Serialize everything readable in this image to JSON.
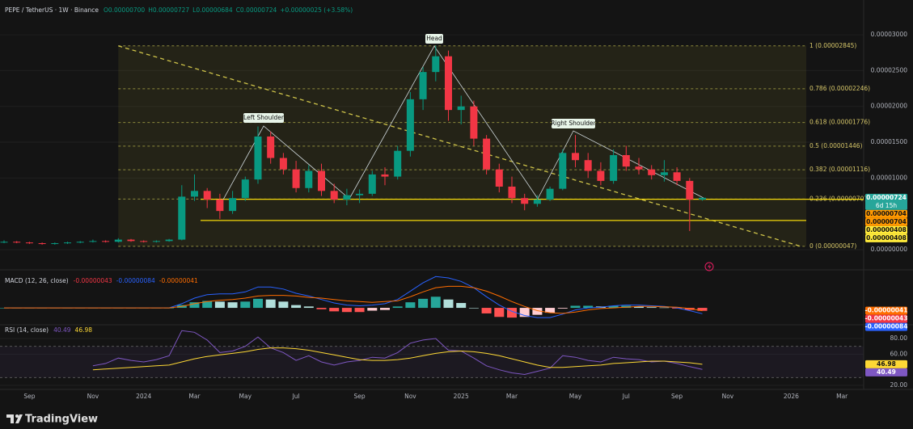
{
  "chart_data": [
    {
      "type": "candlestick",
      "title": "PEPE / TetherUS · 1W · Binance",
      "ohlc": [
        "O0.00000700",
        "H0.00000727",
        "L0.00000684",
        "C0.00000724",
        "+0.00000025 (+3.58%)"
      ],
      "categories": [
        null,
        null,
        "Sep",
        null,
        null,
        null,
        null,
        "Nov",
        null,
        null,
        null,
        "2024",
        null,
        null,
        null,
        "Mar",
        null,
        null,
        null,
        "May",
        null,
        null,
        null,
        "Jul",
        null,
        null,
        null,
        null,
        "Sep",
        null,
        null,
        null,
        "Nov",
        null,
        null,
        null,
        "2025",
        null,
        null,
        null,
        "Mar",
        null,
        null,
        null,
        null,
        "May",
        null,
        null,
        null,
        "Jul",
        null,
        null,
        null,
        "Sep",
        null,
        null,
        null,
        "Nov",
        null,
        null,
        null,
        null,
        "2026",
        null,
        null,
        null,
        "Mar",
        null
      ],
      "open": [
        1e-06,
        1.1e-06,
        1e-06,
        9e-07,
        8e-07,
        9e-07,
        1e-06,
        1.1e-06,
        1.2e-06,
        1.1e-06,
        1.4e-06,
        1.2e-06,
        1.1e-06,
        1.2e-06,
        1.4e-06,
        7.4e-06,
        8.2e-06,
        7e-06,
        5.4e-06,
        7.2e-06,
        9.8e-06,
        1.58e-05,
        1.28e-05,
        1.12e-05,
        8.6e-06,
        1.1e-05,
        8.2e-06,
        7e-06,
        7.6e-06,
        7.8e-06,
        1.05e-05,
        1.02e-05,
        1.38e-05,
        2.1e-05,
        2.48e-05,
        2.7e-05,
        1.95e-05,
        2e-05,
        1.55e-05,
        1.12e-05,
        8.8e-06,
        7.2e-06,
        6.4e-06,
        7e-06,
        8.5e-06,
        1.35e-05,
        1.25e-05,
        1.1e-05,
        9.6e-06,
        1.32e-05,
        1.16e-05,
        1.12e-05,
        1.04e-05,
        1.08e-05,
        9.6e-06,
        7e-06,
        null,
        null,
        null,
        null,
        null,
        null,
        null,
        null,
        null,
        null,
        null,
        null
      ],
      "high": [
        1.3e-06,
        1.2e-06,
        1.1e-06,
        1e-06,
        1e-06,
        1.1e-06,
        1.2e-06,
        1.4e-06,
        1.3e-06,
        1.6e-06,
        1.5e-06,
        1.3e-06,
        1.3e-06,
        1.5e-06,
        9e-06,
        1.05e-05,
        8.6e-06,
        7.8e-06,
        8.2e-06,
        1.02e-05,
        1.72e-05,
        1.65e-05,
        1.35e-05,
        1.24e-05,
        1.18e-05,
        1.2e-05,
        9.2e-06,
        8.5e-06,
        8.4e-06,
        1.1e-05,
        1.15e-05,
        1.45e-05,
        2.2e-05,
        2.55e-05,
        2.85e-05,
        2.78e-05,
        2.15e-05,
        2.08e-05,
        1.6e-05,
        1.2e-05,
        1.02e-05,
        7.8e-06,
        7.6e-06,
        8.8e-06,
        1.4e-05,
        1.6e-05,
        1.35e-05,
        1.22e-05,
        1.4e-05,
        1.45e-05,
        1.28e-05,
        1.18e-05,
        1.25e-05,
        1.15e-05,
        1e-05,
        7.27e-06,
        null,
        null,
        null,
        null,
        null,
        null,
        null,
        null,
        null,
        null,
        null,
        null
      ],
      "low": [
        9e-07,
        9e-07,
        8e-07,
        7e-07,
        7e-07,
        8e-07,
        9e-07,
        1e-06,
        1e-06,
        1e-06,
        1.1e-06,
        1e-06,
        1e-06,
        1.1e-06,
        1.3e-06,
        6.8e-06,
        5.8e-06,
        4.3e-06,
        5e-06,
        6.8e-06,
        9.2e-06,
        1.2e-05,
        1.05e-05,
        8e-06,
        8e-06,
        7.5e-06,
        6.5e-06,
        6.2e-06,
        6.5e-06,
        7.5e-06,
        9e-06,
        9.8e-06,
        1.3e-05,
        1.95e-05,
        2.35e-05,
        1.8e-05,
        1.75e-05,
        1.45e-05,
        1.05e-05,
        8e-06,
        6.5e-06,
        5.5e-06,
        6e-06,
        6.8e-06,
        8.3e-06,
        1.15e-05,
        1e-05,
        9e-06,
        9.2e-06,
        1.1e-05,
        1.05e-05,
        9.8e-06,
        9.5e-06,
        9e-06,
        2.6e-06,
        6.84e-06,
        null,
        null,
        null,
        null,
        null,
        null,
        null,
        null,
        null,
        null,
        null,
        null
      ],
      "close": [
        1.1e-06,
        1e-06,
        9e-07,
        8e-07,
        9e-07,
        1e-06,
        1.1e-06,
        1.2e-06,
        1.1e-06,
        1.4e-06,
        1.2e-06,
        1.1e-06,
        1.2e-06,
        1.4e-06,
        7.4e-06,
        8.2e-06,
        7e-06,
        5.4e-06,
        7.2e-06,
        9.8e-06,
        1.58e-05,
        1.28e-05,
        1.12e-05,
        8.6e-06,
        1.1e-05,
        8.2e-06,
        7e-06,
        7.6e-06,
        7.8e-06,
        1.05e-05,
        1.02e-05,
        1.38e-05,
        2.1e-05,
        2.48e-05,
        2.7e-05,
        1.95e-05,
        2e-05,
        1.55e-05,
        1.12e-05,
        8.8e-06,
        7.2e-06,
        6.4e-06,
        7e-06,
        8.5e-06,
        1.35e-05,
        1.25e-05,
        1.1e-05,
        9.6e-06,
        1.32e-05,
        1.16e-05,
        1.12e-05,
        1.04e-05,
        1.08e-05,
        9.6e-06,
        7e-06,
        7.24e-06,
        null,
        null,
        null,
        null,
        null,
        null,
        null,
        null,
        null,
        null,
        null,
        null
      ],
      "up_color": "#089981",
      "down_color": "#f23645",
      "ylim": [
        -1.24e-06,
        3.373e-05
      ],
      "yticks": [
        {
          "value": 0,
          "label": "0.00000000"
        },
        {
          "value": 1e-05,
          "label": "0.00001000"
        },
        {
          "value": 1.5e-05,
          "label": "0.00001500"
        },
        {
          "value": 2e-05,
          "label": "0.00002000"
        },
        {
          "value": 2.5e-05,
          "label": "0.00002500"
        },
        {
          "value": 3e-05,
          "label": "0.00003000"
        }
      ],
      "fib": [
        {
          "value": 2.845e-05,
          "label": "1 (0.00002845)"
        },
        {
          "value": 2.246e-05,
          "label": "0.786 (0.00002246)"
        },
        {
          "value": 1.776e-05,
          "label": "0.618 (0.00001776)"
        },
        {
          "value": 1.446e-05,
          "label": "0.5 (0.00001446)"
        },
        {
          "value": 1.116e-05,
          "label": "0.382 (0.00001116)"
        },
        {
          "value": 7.07e-06,
          "label": "0.236 (0.00000707)"
        },
        {
          "value": 4.7e-07,
          "label": "0 (0.00000047)"
        }
      ],
      "hlines": [
        {
          "value": 7.04e-06,
          "color": "#f5d90a"
        },
        {
          "value": 4.08e-06,
          "color": "#f5d90a"
        }
      ],
      "price_labels": [
        {
          "value": 7.24e-06,
          "label": "0.00000724",
          "countdown": "6d 15h",
          "color": "#26a69a"
        },
        {
          "value": 7.04e-06,
          "label": "0.00000704",
          "color": "#ff9800"
        },
        {
          "value": 7.04e-06,
          "label": "0.00000704",
          "color": "#ff9800"
        },
        {
          "value": 4.08e-06,
          "label": "0.00000408",
          "color": "#ffeb3b"
        },
        {
          "value": 4.08e-06,
          "label": "0.00000408",
          "color": "#ffeb3b"
        }
      ],
      "annotations": [
        "Left Shoulder",
        "Head",
        "Right Shoulder"
      ]
    },
    {
      "type": "macd",
      "title": "MACD (12, 26, close)",
      "legend": [
        {
          "label": "-0.00000043",
          "color": "#f23645"
        },
        {
          "label": "-0.00000084",
          "color": "#2962ff"
        },
        {
          "label": "-0.00000041",
          "color": "#ff6d00"
        }
      ],
      "histogram": [
        0,
        0,
        0,
        0,
        0,
        0,
        0,
        0,
        0,
        0,
        0,
        0,
        0,
        0,
        4e-07,
        8e-07,
        1e-06,
        9e-07,
        8e-07,
        9e-07,
        1.3e-06,
        1.2e-06,
        9e-07,
        4e-07,
        2e-07,
        -2e-07,
        -5e-07,
        -6e-07,
        -6e-07,
        -4e-07,
        -3e-07,
        2e-07,
        8e-07,
        1.3e-06,
        1.6e-06,
        1.2e-06,
        7e-07,
        0,
        -8e-07,
        -1.3e-06,
        -1.4e-06,
        -1.3e-06,
        -1e-06,
        -7e-07,
        -1e-07,
        3e-07,
        3e-07,
        2e-07,
        3e-07,
        3e-07,
        2e-07,
        1e-07,
        5e-08,
        -1e-07,
        -3e-07,
        -4.3e-07,
        null,
        null,
        null,
        null,
        null,
        null,
        null,
        null,
        null,
        null,
        null,
        null
      ],
      "series": [
        {
          "name": "MACD",
          "color": "#2962ff",
          "values": [
            0,
            0,
            0,
            0,
            0,
            0,
            0,
            0,
            0,
            0,
            0,
            0,
            0,
            0,
            6e-07,
            1.4e-06,
            1.9e-06,
            2e-06,
            2e-06,
            2.3e-06,
            3e-06,
            3e-06,
            2.7e-06,
            2.1e-06,
            1.7e-06,
            1.2e-06,
            7e-07,
            4e-07,
            3e-07,
            4e-07,
            6e-07,
            1.2e-06,
            2.4e-06,
            3.6e-06,
            4.5e-06,
            4.3e-06,
            3.8e-06,
            2.9e-06,
            1.6e-06,
            4e-07,
            -5e-07,
            -1.1e-06,
            -1.4e-06,
            -1.4e-06,
            -9e-07,
            -3e-07,
            0,
            1e-07,
            3e-07,
            4e-07,
            4e-07,
            3e-07,
            2e-07,
            0,
            -4e-07,
            -8.4e-07,
            null,
            null,
            null,
            null,
            null,
            null,
            null,
            null,
            null,
            null,
            null,
            null
          ]
        },
        {
          "name": "Signal",
          "color": "#ff6d00",
          "values": [
            0,
            0,
            0,
            0,
            0,
            0,
            0,
            0,
            0,
            0,
            0,
            0,
            0,
            0,
            2e-07,
            6e-07,
            9e-07,
            1.1e-06,
            1.2e-06,
            1.4e-06,
            1.7e-06,
            1.8e-06,
            1.8e-06,
            1.7e-06,
            1.5e-06,
            1.4e-06,
            1.2e-06,
            1e-06,
            9e-07,
            8e-07,
            9e-07,
            1e-06,
            1.6e-06,
            2.3e-06,
            2.9e-06,
            3.1e-06,
            3.1e-06,
            2.9e-06,
            2.4e-06,
            1.7e-06,
            9e-07,
            2e-07,
            -4e-07,
            -7e-07,
            -8e-07,
            -6e-07,
            -3e-07,
            -1e-07,
            0,
            1e-07,
            2e-07,
            2e-07,
            1.5e-07,
            1e-07,
            -1e-07,
            -4.1e-07,
            null,
            null,
            null,
            null,
            null,
            null,
            null,
            null,
            null,
            null,
            null,
            null
          ]
        }
      ],
      "badges": [
        {
          "value": -4.1e-07,
          "label": "-0.00000041",
          "color": "#ff6d00"
        },
        {
          "value": -4.3e-07,
          "label": "-0.00000043",
          "color": "#f23645"
        },
        {
          "value": -8.4e-07,
          "label": "-0.00000084",
          "color": "#2962ff"
        }
      ],
      "ylim": [
        -2.2e-06,
        5e-06
      ]
    },
    {
      "type": "rsi",
      "title": "RSI (14, close)",
      "legend": [
        {
          "label": "40.49",
          "color": "#7e57c2"
        },
        {
          "label": "46.98",
          "color": "#fdd835"
        }
      ],
      "series": [
        {
          "name": "RSI",
          "color": "#7e57c2",
          "values": [
            null,
            null,
            null,
            null,
            null,
            null,
            null,
            45,
            48,
            55,
            52,
            50,
            53,
            58,
            90,
            88,
            78,
            62,
            64,
            70,
            82,
            68,
            62,
            52,
            58,
            50,
            46,
            50,
            52,
            56,
            55,
            62,
            74,
            78,
            80,
            65,
            64,
            55,
            45,
            40,
            36,
            34,
            38,
            42,
            58,
            56,
            52,
            50,
            56,
            54,
            53,
            50,
            51,
            48,
            44,
            40.49,
            null,
            null,
            null,
            null,
            null,
            null,
            null,
            null,
            null,
            null,
            null,
            null
          ]
        },
        {
          "name": "RSI-based MA",
          "color": "#fdd835",
          "values": [
            null,
            null,
            null,
            null,
            null,
            null,
            null,
            40,
            41,
            42,
            43,
            44,
            45,
            46,
            50,
            54,
            57,
            59,
            61,
            63,
            66,
            68,
            68,
            67,
            65,
            62,
            59,
            56,
            53,
            52,
            52,
            53,
            55,
            58,
            61,
            63,
            64,
            63,
            61,
            58,
            54,
            50,
            46,
            43,
            43,
            44,
            45,
            46,
            48,
            49,
            50,
            51,
            51,
            50,
            49,
            46.98,
            null,
            null,
            null,
            null,
            null,
            null,
            null,
            null,
            null,
            null,
            null,
            null
          ]
        }
      ],
      "bands": [
        70,
        30
      ],
      "badges": [
        {
          "value": 46.98,
          "label": "46.98",
          "color": "#fdd835"
        },
        {
          "value": 40.49,
          "label": "40.49",
          "color": "#7e57c2"
        }
      ],
      "ylim": [
        16.9,
        94.5
      ],
      "yticks": [
        {
          "value": 20,
          "label": "20.00"
        },
        {
          "value": 60,
          "label": "60.00"
        },
        {
          "value": 80,
          "label": "80.00"
        }
      ]
    }
  ],
  "footer": {
    "brand": "TradingView"
  }
}
